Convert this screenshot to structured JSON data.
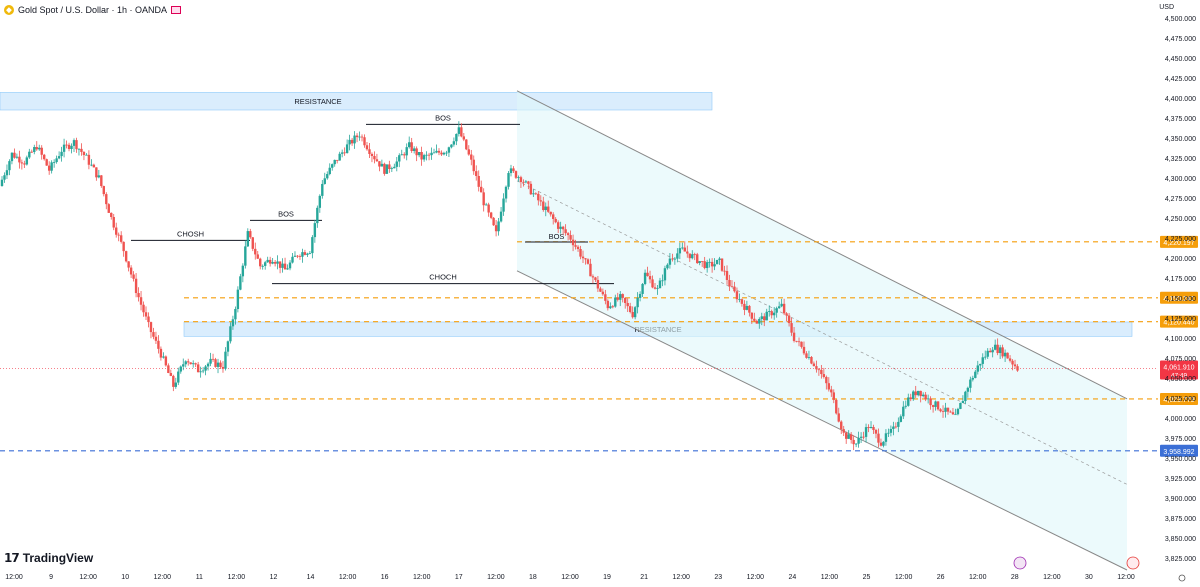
{
  "header": {
    "title": "Gold Spot / U.S. Dollar · 1h · OANDA",
    "currency": "USD"
  },
  "branding": {
    "logo_text": "TradingView"
  },
  "colors": {
    "up": "#26a69a",
    "down": "#ef5350",
    "resistance_zone": "#bbdefb",
    "channel_fill": "#e0f7fa",
    "dashed_orange": "#f59e0b",
    "dashed_blue": "#3b6fd6",
    "price_red": "#f23645"
  },
  "chart_data": {
    "type": "candlestick",
    "y_axis": {
      "min": 3812.5,
      "max": 4512.5,
      "ticks": [
        4500,
        4475,
        4450,
        4425,
        4400,
        4375,
        4350,
        4325,
        4300,
        4275,
        4250,
        4225,
        4200,
        4175,
        4150,
        4125,
        4100,
        4075,
        4050,
        4025,
        4000,
        3975,
        3950,
        3925,
        3900,
        3875,
        3850,
        3825
      ],
      "tick_labels": [
        "4,500.000",
        "4,475.000",
        "4,450.000",
        "4,425.000",
        "4,400.000",
        "4,375.000",
        "4,350.000",
        "4,325.000",
        "4,300.000",
        "4,275.000",
        "4,250.000",
        "4,225.000",
        "4,200.000",
        "4,175.000",
        "4,150.000",
        "4,125.000",
        "4,100.000",
        "4,075.000",
        "4,050.000",
        "4,025.000",
        "4,000.000",
        "3,975.000",
        "3,950.000",
        "3,925.000",
        "3,900.000",
        "3,875.000",
        "3,850.000",
        "3,825.000"
      ]
    },
    "x_axis": {
      "labels": [
        "12:00",
        "9",
        "12:00",
        "10",
        "12:00",
        "11",
        "12:00",
        "12",
        "14",
        "12:00",
        "16",
        "12:00",
        "17",
        "12:00",
        "18",
        "12:00",
        "19",
        "21",
        "12:00",
        "23",
        "12:00",
        "24",
        "12:00",
        "25",
        "12:00",
        "26",
        "12:00",
        "28",
        "12:00",
        "30",
        "12:00"
      ]
    },
    "price_levels": [
      {
        "value": 4220.197,
        "label": "4,220.197",
        "style": "dashed-orange"
      },
      {
        "value": 4150.241,
        "label": "4,150.241",
        "style": "dashed-orange"
      },
      {
        "value": 4120.44,
        "label": "4,120.440",
        "style": "dashed-orange"
      },
      {
        "value": 4023.779,
        "label": "4,023.779",
        "style": "dashed-orange"
      },
      {
        "value": 3958.992,
        "label": "3,958.992",
        "style": "dashed-blue"
      }
    ],
    "current_price": {
      "value": 4061.91,
      "label": "4,061.910",
      "countdown": "47:49"
    },
    "zones": [
      {
        "label": "RESISTANCE",
        "top": 4407,
        "bottom": 4385
      },
      {
        "label": "RESISTANCE",
        "top": 4120,
        "bottom": 4102
      }
    ],
    "annotations": [
      {
        "label": "BOS",
        "level": 4367
      },
      {
        "label": "CHOSH",
        "level": 4222
      },
      {
        "label": "BOS",
        "level": 4247
      },
      {
        "label": "CHOCH",
        "level": 4168
      },
      {
        "label": "BOS",
        "level": 4220
      }
    ],
    "channel": {
      "upper": [
        4409,
        4024
      ],
      "lower": [
        4184,
        3810
      ]
    },
    "ohlc_path": [
      4290,
      4330,
      4320,
      4340,
      4310,
      4335,
      4345,
      4325,
      4300,
      4250,
      4210,
      4160,
      4115,
      4080,
      4040,
      4075,
      4060,
      4070,
      4065,
      4140,
      4230,
      4190,
      4200,
      4185,
      4205,
      4210,
      4295,
      4320,
      4340,
      4355,
      4330,
      4310,
      4320,
      4340,
      4325,
      4330,
      4335,
      4360,
      4320,
      4270,
      4230,
      4310,
      4300,
      4280,
      4260,
      4240,
      4225,
      4200,
      4170,
      4140,
      4150,
      4130,
      4180,
      4160,
      4200,
      4210,
      4200,
      4190,
      4195,
      4160,
      4140,
      4120,
      4130,
      4140,
      4100,
      4080,
      4060,
      4030,
      3980,
      3968,
      3990,
      3970,
      3985,
      4020,
      4035,
      4020,
      4010,
      4000,
      4040,
      4070,
      4090,
      4080,
      4062
    ]
  }
}
